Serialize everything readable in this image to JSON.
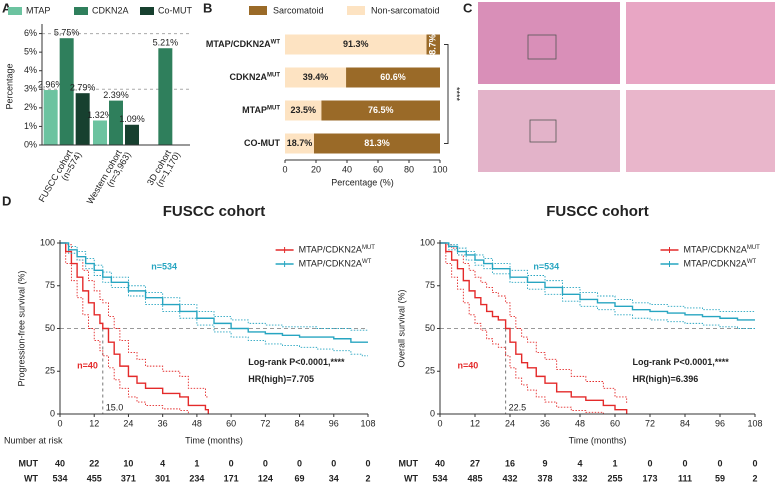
{
  "image_panel": {
    "panel_label": "C"
  },
  "chart_data": [
    {
      "type": "bar",
      "panel_label": "A",
      "y_label": "Percentage",
      "categories": [
        "FUSCC cohort",
        "Western cohort",
        "3D cohort"
      ],
      "category_notes": [
        "(n=574)",
        "(n=3,963)",
        "(n=1,170)"
      ],
      "series": [
        {
          "name": "MTAP",
          "color": "#6cc3a0",
          "values": [
            2.96,
            1.32,
            null
          ],
          "value_labels": [
            "2.96%",
            "1.32%",
            null
          ]
        },
        {
          "name": "CDKN2A",
          "color": "#2f7f5c",
          "values": [
            5.75,
            2.39,
            5.21
          ],
          "value_labels": [
            "5.75%",
            "2.39%",
            "5.21%"
          ]
        },
        {
          "name": "Co-MUT",
          "color": "#17402f",
          "values": [
            2.79,
            1.09,
            null
          ],
          "value_labels": [
            "2.79%",
            "1.09%",
            null
          ]
        }
      ],
      "ylim": [
        0,
        6.3
      ],
      "yticks": [
        {
          "value": 0,
          "label": "0%"
        },
        {
          "value": 1,
          "label": "1%"
        },
        {
          "value": 2,
          "label": "2%"
        },
        {
          "value": 3,
          "label": "3%"
        },
        {
          "value": 4,
          "label": "4%"
        },
        {
          "value": 5,
          "label": "5%"
        },
        {
          "value": 6,
          "label": "6%"
        }
      ],
      "ref_lines": [
        3,
        6
      ]
    },
    {
      "type": "stacked_bar",
      "panel_label": "B",
      "x_label": "Percentage (%)",
      "categories": [
        "MTAP/CDKN2A",
        "CDKN2A",
        "MTAP",
        "CO-MUT"
      ],
      "category_superscripts": [
        "WT",
        "MUT",
        "MUT",
        null
      ],
      "series": [
        {
          "name": "Sarcomatoid",
          "color": "#9a6a28",
          "label_color": "#ffffff",
          "values": [
            8.7,
            60.6,
            76.5,
            81.3
          ],
          "value_labels": [
            "8.7%",
            "60.6%",
            "76.5%",
            "81.3%"
          ]
        },
        {
          "name": "Non-sarcomatoid",
          "color": "#fde3c2",
          "label_color": "#222222",
          "values": [
            91.3,
            39.4,
            23.5,
            18.7
          ],
          "value_labels": [
            "91.3%",
            "39.4%",
            "23.5%",
            "18.7%"
          ]
        }
      ],
      "xlim": [
        0,
        100
      ],
      "xticks": [
        0,
        20,
        40,
        60,
        80,
        100
      ],
      "annotation": "****"
    },
    {
      "type": "survival",
      "panel_label": "D",
      "title": "FUSCC cohort",
      "x_label": "Time (months)",
      "y_label": "Progression-free survival (%)",
      "xlim": [
        0,
        108
      ],
      "xticks": [
        0,
        12,
        24,
        36,
        48,
        60,
        72,
        84,
        96,
        108
      ],
      "ylim": [
        0,
        100
      ],
      "yticks": [
        0,
        25,
        50,
        75,
        100
      ],
      "ref_line": 50,
      "median": {
        "value": 15,
        "label": "15.0"
      },
      "n_wt": "n=534",
      "n_mut": "n=40",
      "logrank": "Log-rank P<0.0001,****",
      "hr": "HR(high)=7.705",
      "series": [
        {
          "name": "MTAP/CDKN2A",
          "name_superscript": "MUT",
          "color": "#e42a2a",
          "x": [
            0,
            2,
            4,
            6,
            8,
            10,
            12,
            14,
            15,
            17,
            19,
            21,
            24,
            27,
            30,
            36,
            42,
            45,
            51,
            52
          ],
          "values": [
            100,
            95,
            88,
            80,
            72,
            65,
            58,
            53,
            50,
            42,
            35,
            28,
            22,
            18,
            15,
            12,
            10,
            5,
            2.5,
            0
          ],
          "ci_lower": [
            100,
            88,
            78,
            68,
            58,
            50,
            43,
            37,
            34,
            27,
            20,
            15,
            10,
            7,
            5,
            3,
            2,
            0,
            0,
            0
          ],
          "ci_upper": [
            100,
            99,
            96,
            90,
            84,
            78,
            72,
            67,
            65,
            57,
            50,
            43,
            36,
            32,
            28,
            25,
            22,
            15,
            10,
            10
          ]
        },
        {
          "name": "MTAP/CDKN2A",
          "name_superscript": "WT",
          "color": "#27a5c1",
          "x": [
            0,
            3,
            6,
            9,
            12,
            15,
            18,
            24,
            30,
            36,
            42,
            48,
            54,
            60,
            66,
            72,
            78,
            84,
            90,
            96,
            102,
            106,
            108
          ],
          "values": [
            100,
            96,
            92,
            88,
            84,
            80,
            77,
            72,
            68,
            64,
            60,
            56,
            53,
            50,
            48,
            47,
            46,
            45,
            45,
            44,
            42,
            42,
            42
          ],
          "ci_lower": [
            100,
            94,
            90,
            85,
            81,
            77,
            74,
            69,
            64,
            60,
            56,
            52,
            48,
            45,
            43,
            41,
            40,
            39,
            38,
            37,
            35,
            34,
            34
          ],
          "ci_upper": [
            100,
            98,
            95,
            91,
            87,
            83,
            80,
            75,
            71,
            68,
            64,
            60,
            57,
            55,
            53,
            52,
            51,
            51,
            50,
            50,
            49,
            49,
            49
          ]
        }
      ],
      "risk_table": {
        "title": "Number at risk",
        "rows": [
          {
            "name": "MUT",
            "values": [
              40,
              22,
              10,
              4,
              1,
              0,
              0,
              0,
              0,
              0
            ]
          },
          {
            "name": "WT",
            "values": [
              534,
              455,
              371,
              301,
              234,
              171,
              124,
              69,
              34,
              2
            ]
          }
        ]
      }
    },
    {
      "type": "survival",
      "title": "FUSCC cohort",
      "x_label": "Time (months)",
      "y_label": "Overall survival (%)",
      "xlim": [
        0,
        108
      ],
      "xticks": [
        0,
        12,
        24,
        36,
        48,
        60,
        72,
        84,
        96,
        108
      ],
      "ylim": [
        0,
        100
      ],
      "yticks": [
        0,
        25,
        50,
        75,
        100
      ],
      "ref_line": 50,
      "median": {
        "value": 22.5,
        "label": "22.5"
      },
      "n_wt": "n=534",
      "n_mut": "n=40",
      "logrank": "Log-rank P<0.0001,****",
      "hr": "HR(high)=6.396",
      "series": [
        {
          "name": "MTAP/CDKN2A",
          "name_superscript": "MUT",
          "color": "#e42a2a",
          "x": [
            0,
            2,
            4,
            6,
            8,
            10,
            12,
            14,
            16,
            18,
            20,
            22.5,
            24,
            26,
            28,
            30,
            33,
            36,
            40,
            45,
            50,
            56,
            60,
            64
          ],
          "values": [
            100,
            95,
            90,
            85,
            78,
            72,
            68,
            64,
            60,
            57,
            55,
            50,
            42,
            35,
            30,
            27,
            22,
            18,
            13,
            10,
            8,
            5,
            2.5,
            0
          ],
          "ci_lower": [
            100,
            88,
            80,
            73,
            65,
            58,
            53,
            49,
            44,
            41,
            39,
            34,
            27,
            21,
            17,
            14,
            10,
            7,
            4,
            2,
            1,
            0,
            0,
            0
          ],
          "ci_upper": [
            100,
            99,
            97,
            93,
            88,
            84,
            80,
            77,
            74,
            71,
            69,
            65,
            57,
            50,
            45,
            42,
            36,
            32,
            26,
            22,
            19,
            15,
            10,
            6
          ]
        },
        {
          "name": "MTAP/CDKN2A",
          "name_superscript": "WT",
          "color": "#27a5c1",
          "x": [
            0,
            3,
            6,
            9,
            12,
            15,
            18,
            24,
            30,
            36,
            42,
            48,
            54,
            60,
            66,
            72,
            78,
            84,
            90,
            96,
            102,
            108
          ],
          "values": [
            100,
            98,
            95,
            93,
            90,
            88,
            85,
            80,
            77,
            74,
            70,
            67,
            65,
            63,
            61,
            60,
            59,
            58,
            57,
            56,
            55,
            55
          ],
          "ci_lower": [
            100,
            96,
            93,
            90,
            87,
            85,
            82,
            77,
            73,
            70,
            66,
            63,
            61,
            58,
            56,
            55,
            54,
            53,
            52,
            51,
            50,
            50
          ],
          "ci_upper": [
            100,
            99,
            97,
            95,
            93,
            91,
            88,
            84,
            81,
            78,
            74,
            71,
            69,
            67,
            65,
            64,
            63,
            62,
            61,
            60,
            60,
            60
          ]
        }
      ],
      "risk_table": {
        "rows": [
          {
            "name": "MUT",
            "values": [
              40,
              27,
              16,
              9,
              4,
              1,
              0,
              0,
              0,
              0
            ]
          },
          {
            "name": "WT",
            "values": [
              534,
              485,
              432,
              378,
              332,
              255,
              173,
              111,
              59,
              2
            ]
          }
        ]
      }
    }
  ]
}
